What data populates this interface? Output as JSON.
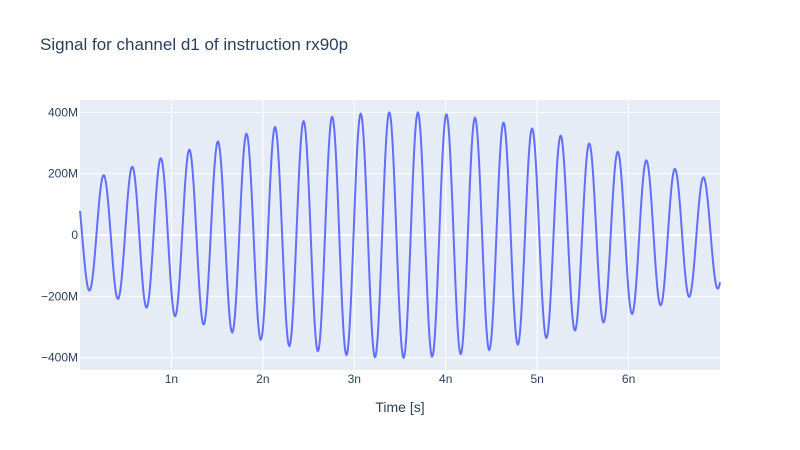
{
  "chart_data": {
    "type": "line",
    "title": "Signal for channel d1 of instruction rx90p",
    "xlabel": "Time [s]",
    "ylabel": "",
    "xlim": [
      0,
      7e-09
    ],
    "ylim": [
      -440000000,
      440000000
    ],
    "x_ticks": [
      {
        "value": 1e-09,
        "label": "1n"
      },
      {
        "value": 2e-09,
        "label": "2n"
      },
      {
        "value": 3e-09,
        "label": "3n"
      },
      {
        "value": 4e-09,
        "label": "4n"
      },
      {
        "value": 5e-09,
        "label": "5n"
      },
      {
        "value": 6e-09,
        "label": "6n"
      }
    ],
    "y_ticks": [
      {
        "value": 400000000,
        "label": "400M"
      },
      {
        "value": 200000000,
        "label": "200M"
      },
      {
        "value": 0,
        "label": "0"
      },
      {
        "value": -200000000,
        "label": "−200M"
      },
      {
        "value": -400000000,
        "label": "−400M"
      }
    ],
    "grid": true,
    "legend": "none",
    "series": [
      {
        "color": "#636efa",
        "signal_model": {
          "kind": "gaussian-modulated sinusoid",
          "peak_amplitude": 400000000,
          "envelope_center_s": 3.5e-09,
          "envelope_sigma_s": 2.7e-09,
          "carrier_frequency_hz": 3200000000.0,
          "carrier_phase_rad": 1.1,
          "t_start_s": 0,
          "t_end_s": 7e-09,
          "samples": 1400
        }
      }
    ]
  },
  "colors": {
    "plot_background": "#e5ecf6",
    "grid": "#ffffff",
    "text": "#2a3f5f",
    "line": "#636efa"
  }
}
